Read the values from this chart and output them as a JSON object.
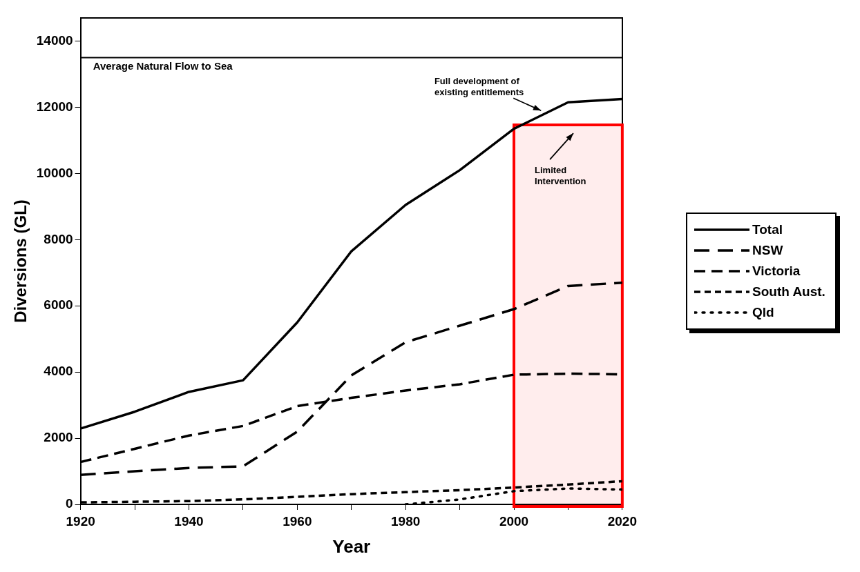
{
  "chart_data": {
    "type": "line",
    "xlabel": "Year",
    "ylabel": "Diversions (GL)",
    "x": [
      1920,
      1930,
      1940,
      1950,
      1960,
      1970,
      1980,
      1990,
      2000,
      2010,
      2020
    ],
    "series": [
      {
        "name": "Total",
        "color": "#000000",
        "line_style": "solid",
        "values": [
          2290,
          2800,
          3400,
          3750,
          5500,
          7650,
          9050,
          10100,
          11350,
          12150,
          12250
        ]
      },
      {
        "name": "NSW",
        "color": "#000000",
        "line_style": "dashed",
        "values": [
          890,
          1000,
          1100,
          1150,
          2200,
          3900,
          4900,
          5400,
          5900,
          6600,
          6700
        ]
      },
      {
        "name": "Victoria",
        "color": "#000000",
        "line_style": "dashed",
        "values": [
          1280,
          1680,
          2080,
          2370,
          2970,
          3220,
          3440,
          3630,
          3920,
          3950,
          3930
        ]
      },
      {
        "name": "South Aust.",
        "color": "#000000",
        "line_style": "dashed",
        "values": [
          60,
          80,
          100,
          150,
          230,
          310,
          370,
          430,
          510,
          600,
          700
        ]
      },
      {
        "name": "Qld",
        "color": "#000000",
        "line_style": "dotted",
        "values": [
          null,
          null,
          null,
          null,
          null,
          null,
          0,
          150,
          400,
          480,
          450
        ]
      }
    ],
    "xlim": [
      1920,
      2020
    ],
    "xticks": [
      1920,
      {
        "value": 1930,
        "label": null
      },
      1940,
      {
        "value": 1950,
        "label": null
      },
      1960,
      {
        "value": 1970,
        "label": null
      },
      1980,
      {
        "value": 1990,
        "label": null
      },
      2000,
      {
        "value": 2010,
        "label": null
      },
      2020
    ],
    "ylim": [
      0,
      14700
    ],
    "yticks": [
      0,
      2000,
      4000,
      6000,
      8000,
      10000,
      12000,
      14000
    ],
    "ref_lines": [
      {
        "axis": "y",
        "value": 13500,
        "label": "Average Natural Flow to Sea",
        "color": "#000000"
      }
    ],
    "bands": [
      {
        "axis": "x",
        "from": 2000,
        "to": 2020,
        "color": "#ff0000"
      }
    ],
    "annotations": [
      {
        "text": "Full development of\nexisting entitlements",
        "x": 2005,
        "y": 11900
      },
      "Limited\nIntervention"
    ],
    "grid": false,
    "legend": "right",
    "marker": "none"
  }
}
